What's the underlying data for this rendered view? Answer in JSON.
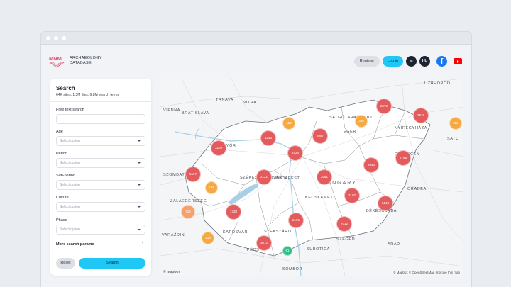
{
  "brand": {
    "logo_text": "MNM",
    "line1": "ARCHAEOLOGY",
    "line2": "DATABASE"
  },
  "header": {
    "register_label": "Register",
    "login_label": "Log in",
    "menu_glyph": "≡",
    "language_label": "HU",
    "facebook_glyph": "f"
  },
  "search": {
    "title": "Search",
    "subtitle": "64K sites, 1.3M files, 6.8M search terms",
    "free_text_label": "Free text search",
    "free_text_value": "",
    "fields": [
      {
        "label": "Age",
        "placeholder": "Select option"
      },
      {
        "label": "Period",
        "placeholder": "Select option"
      },
      {
        "label": "Sub-period",
        "placeholder": "Select option"
      },
      {
        "label": "Culture",
        "placeholder": "Select option"
      },
      {
        "label": "Phase",
        "placeholder": "Select option"
      }
    ],
    "more_params_label": "More search params",
    "more_params_chevron": "›",
    "reset_label": "Reset",
    "search_label": "Search"
  },
  "map": {
    "places": [
      {
        "name": "UZHHOROD"
      },
      {
        "name": "VIENNA"
      },
      {
        "name": "BRATISLAVA"
      },
      {
        "name": "TRNAVA"
      },
      {
        "name": "NITRA"
      },
      {
        "name": "SALGÓTARJÁN"
      },
      {
        "name": "MISKOLC"
      },
      {
        "name": "NYÍREGYHÁZA"
      },
      {
        "name": "EGER"
      },
      {
        "name": "GYŐR"
      },
      {
        "name": "SATU"
      },
      {
        "name": "DEBRECEN"
      },
      {
        "name": "SZOMBATHELY"
      },
      {
        "name": "SZÉKESFEHÉRVÁR"
      },
      {
        "name": "BUDAPEST"
      },
      {
        "name": "ORADEA"
      },
      {
        "name": "HUNGARY"
      },
      {
        "name": "KECSKEMÉT"
      },
      {
        "name": "ZALAEGERSZEG"
      },
      {
        "name": "BÉKÉSCSABA"
      },
      {
        "name": "KAPOSVÁR"
      },
      {
        "name": "SZEKSZÁRD"
      },
      {
        "name": "VARAŽDIN"
      },
      {
        "name": "SZEGED"
      },
      {
        "name": "ARAD"
      },
      {
        "name": "PÉCS"
      },
      {
        "name": "SUBOTICA"
      },
      {
        "name": "SOMBOR"
      }
    ],
    "clusters": [
      {
        "label": "2579",
        "level": "high"
      },
      {
        "label": "2816",
        "level": "high"
      },
      {
        "label": "388",
        "level": "mid"
      },
      {
        "label": "382",
        "level": "mid"
      },
      {
        "label": "456",
        "level": "mid"
      },
      {
        "label": "1243",
        "level": "high"
      },
      {
        "label": "4087",
        "level": "high"
      },
      {
        "label": "2424",
        "level": "high"
      },
      {
        "label": "3209",
        "level": "high"
      },
      {
        "label": "2795",
        "level": "high"
      },
      {
        "label": "2043",
        "level": "high"
      },
      {
        "label": "5117",
        "level": "high"
      },
      {
        "label": "2121",
        "level": "high"
      },
      {
        "label": "2061",
        "level": "high"
      },
      {
        "label": "156",
        "level": "mid"
      },
      {
        "label": "2107",
        "level": "high"
      },
      {
        "label": "6143",
        "level": "high"
      },
      {
        "label": "714",
        "level": "low"
      },
      {
        "label": "1738",
        "level": "high"
      },
      {
        "label": "2106",
        "level": "high"
      },
      {
        "label": "7012",
        "level": "high"
      },
      {
        "label": "216",
        "level": "mid"
      },
      {
        "label": "3072",
        "level": "high"
      },
      {
        "label": "61",
        "level": "green"
      }
    ],
    "level_colors": {
      "high": "#e45b5e",
      "mid": "#f6a943",
      "low": "#f6a06a",
      "green": "#2fc087"
    },
    "attribution": "© Mapbox © OpenStreetMap  Improve this map",
    "mapbox_logo": "© mapbox"
  }
}
